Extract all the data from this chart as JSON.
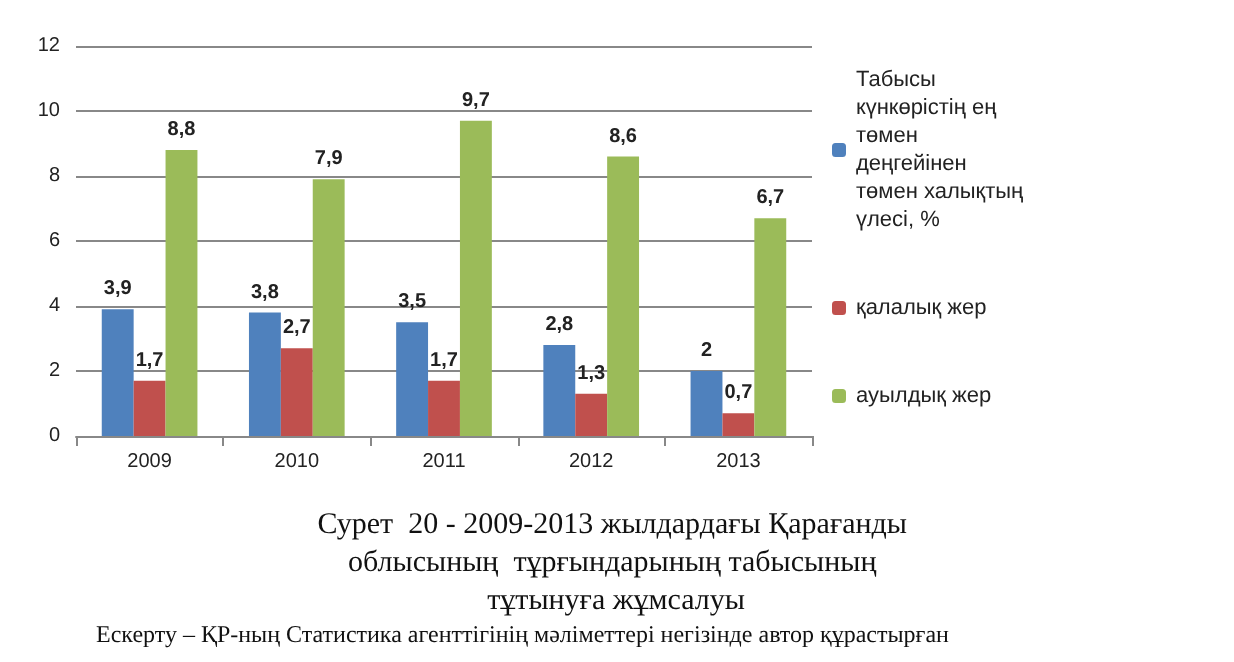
{
  "chart_data": {
    "type": "bar",
    "title": "Сурет  20 - 2009-2013 жылдардағы Қарағанды облысының  тұрғындарының табысының тұтынуға жұмсалуы",
    "annotations": [
      "Ескерту – ҚР-ның Статистика агенттігінің мәліметтері негізінде автор құрастырған"
    ],
    "categories": [
      "2009",
      "2010",
      "2011",
      "2012",
      "2013"
    ],
    "series": [
      {
        "name": "Табысы күнкөрістің ең төмен деңгейінен төмен халықтың үлесі, %",
        "color": "#4f81bd",
        "values": [
          3.9,
          3.8,
          3.5,
          2.8,
          2
        ],
        "value_labels": [
          "3,9",
          "3,8",
          "3,5",
          "2,8",
          "2"
        ]
      },
      {
        "name": "қалалық жер",
        "color": "#c0504d",
        "values": [
          1.7,
          2.7,
          1.7,
          1.3,
          0.7
        ],
        "value_labels": [
          "1,7",
          "2,7",
          "1,7",
          "1,3",
          "0,7"
        ]
      },
      {
        "name": "ауылдық жер",
        "color": "#9bbb59",
        "values": [
          8.8,
          7.9,
          9.7,
          8.6,
          6.7
        ],
        "value_labels": [
          "8,8",
          "7,9",
          "9,7",
          "8,6",
          "6,7"
        ]
      }
    ],
    "ylim": [
      0,
      12
    ],
    "yticks": [
      0,
      2,
      4,
      6,
      8,
      10,
      12
    ],
    "grid": "y",
    "legend": "right"
  }
}
